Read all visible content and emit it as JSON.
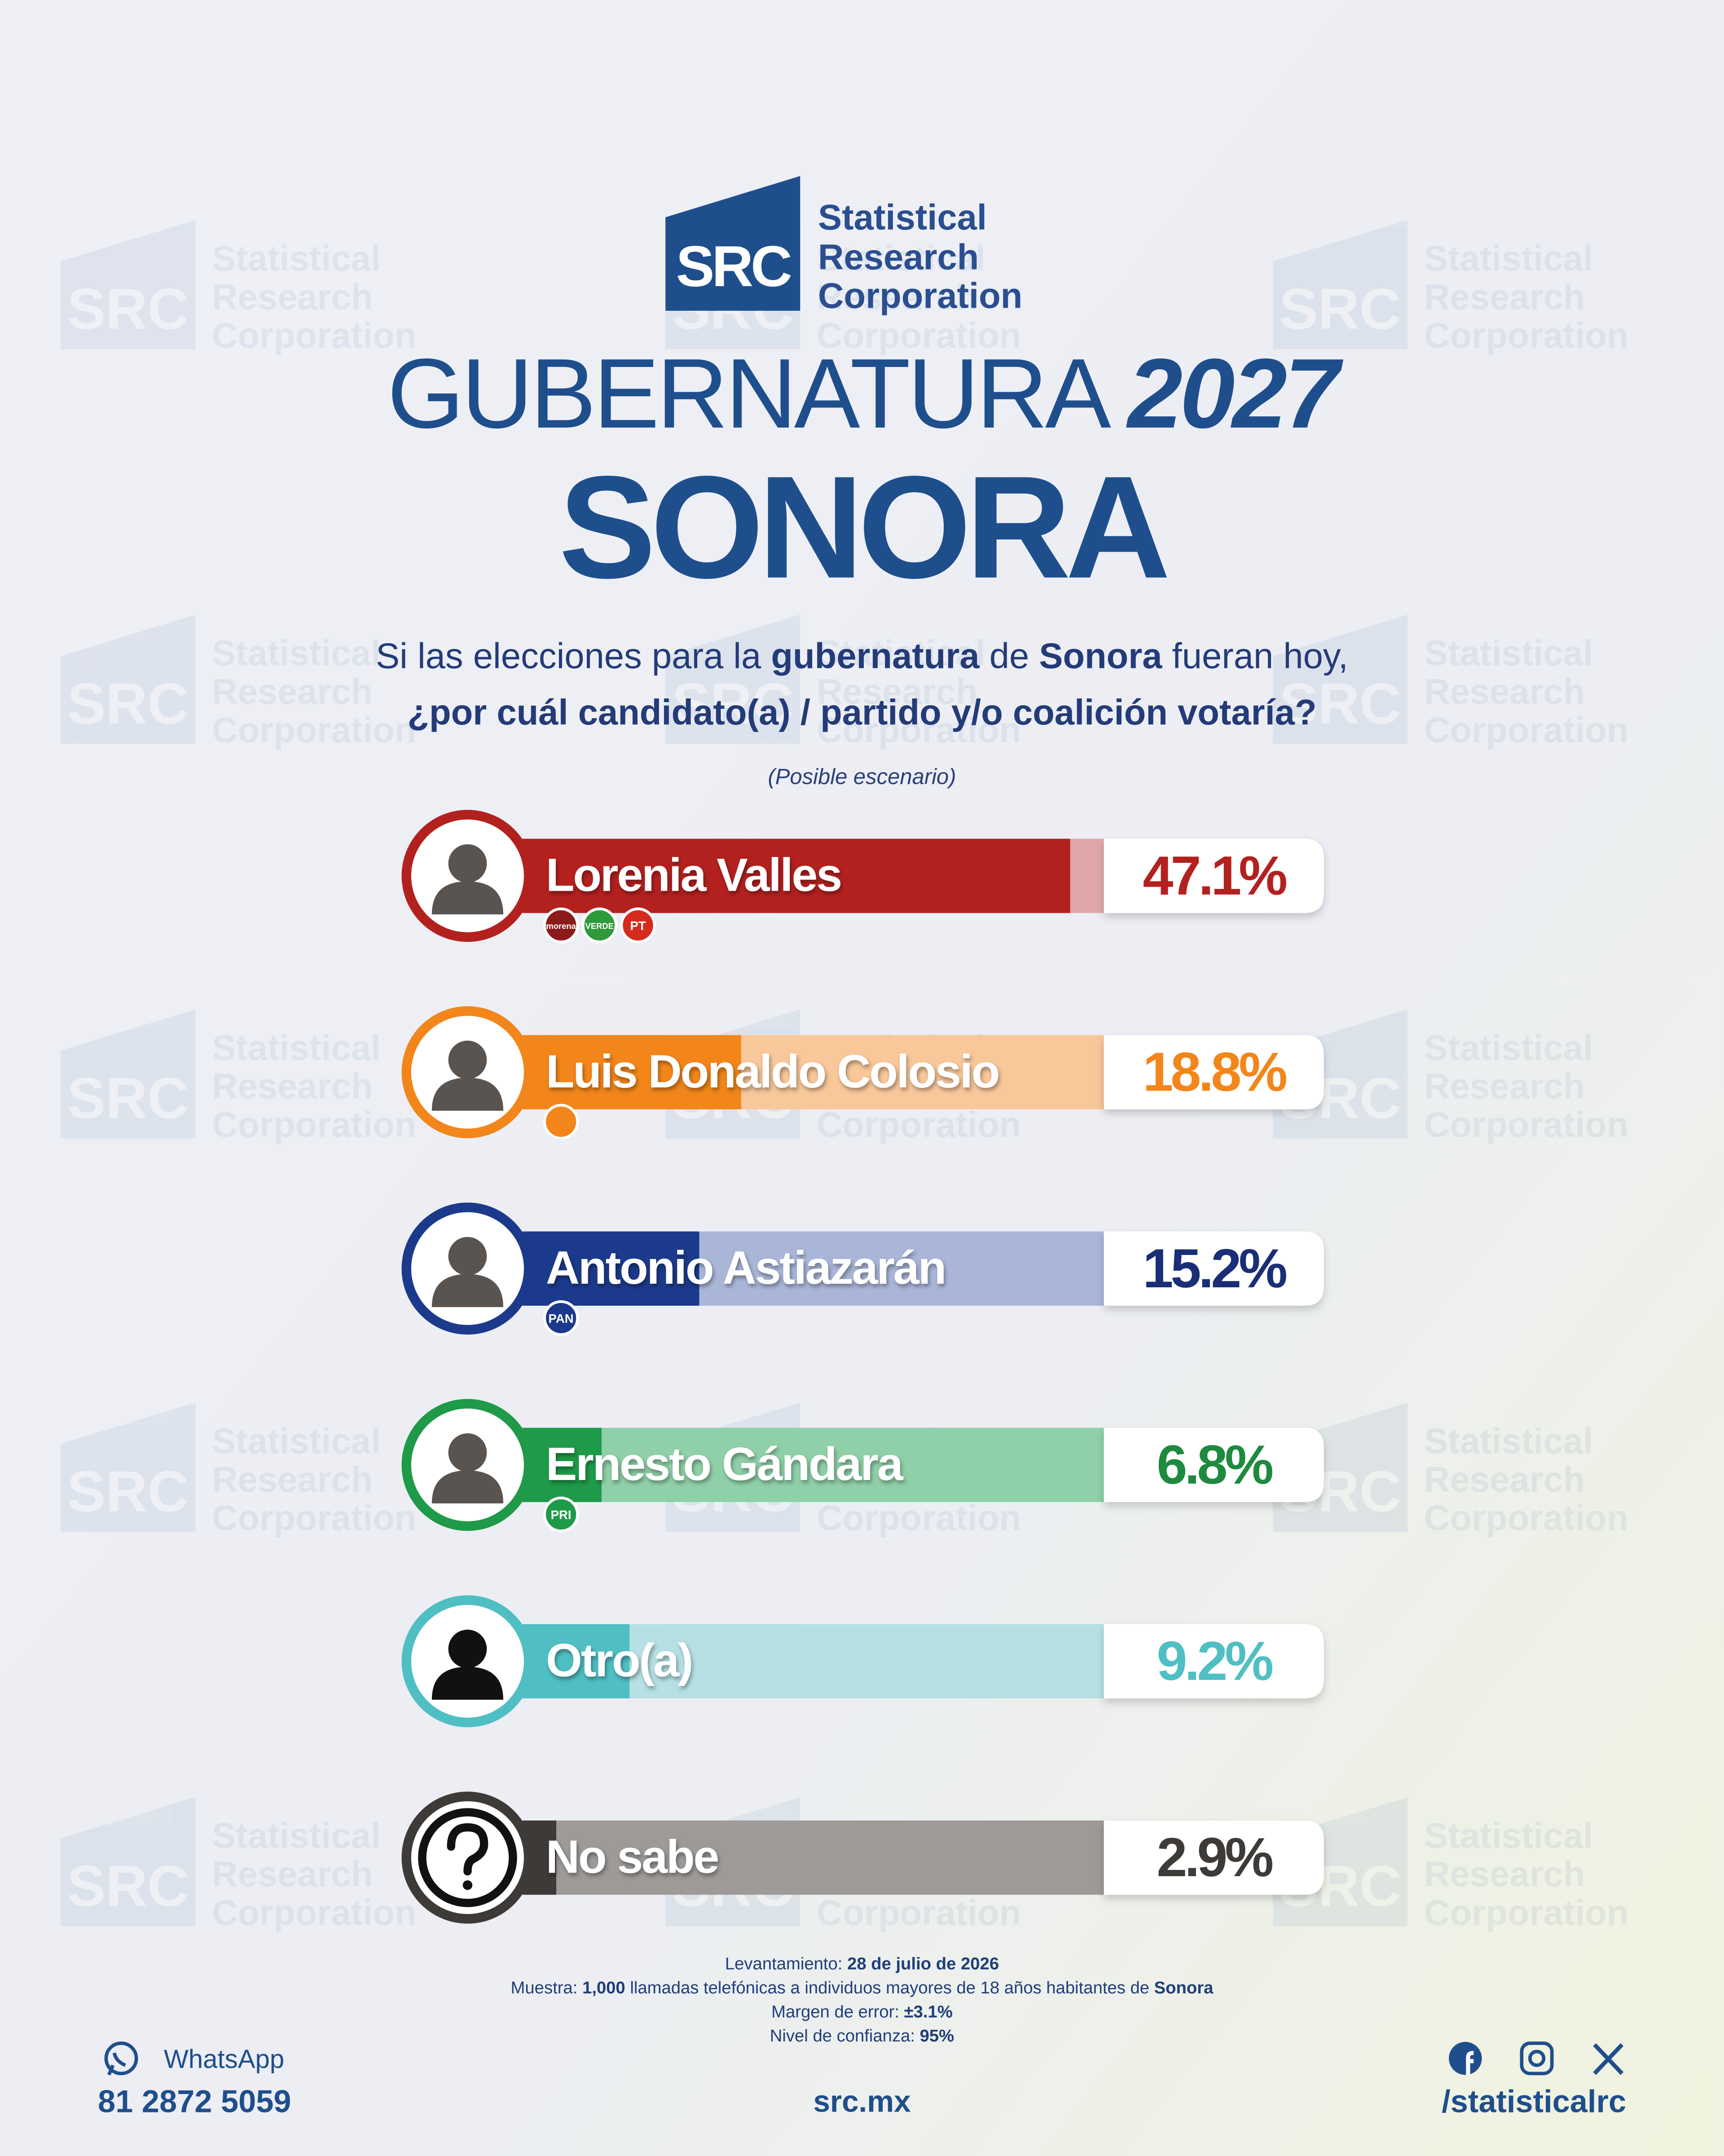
{
  "brand": {
    "initials": "SRC",
    "name": [
      "Statistical",
      "Research",
      "Corporation"
    ]
  },
  "chart_data": {
    "type": "bar",
    "orientation": "horizontal",
    "title": "GUBERNATURA",
    "title_year": "2027",
    "subtitle": "SONORA",
    "question": [
      [
        {
          "text": "Si las elecciones para la ",
          "bold": false
        },
        {
          "text": "gubernatura",
          "bold": true
        },
        {
          "text": " de ",
          "bold": false
        },
        {
          "text": "Sonora",
          "bold": true
        },
        {
          "text": " fueran hoy,",
          "bold": false
        }
      ],
      [
        {
          "text": "¿por cuál candidato(a) / partido y/o coalición votaría?",
          "bold": true
        }
      ]
    ],
    "note": "(Posible escenario)",
    "categories": [
      "Lorenia Valles",
      "Luis Donaldo Colosio",
      "Antonio Astiazarán",
      "Ernesto Gándara",
      "Otro(a)",
      "No sabe"
    ],
    "values": [
      47.1,
      18.8,
      15.2,
      6.8,
      9.2,
      2.9
    ],
    "value_labels": [
      "47.1%",
      "18.8%",
      "15.2%",
      "6.8%",
      "9.2%",
      "2.9%"
    ],
    "colors": [
      "#b3211f",
      "#f2861a",
      "#1c3a8c",
      "#1e9a48",
      "#4fbfc4",
      "#3d3a38"
    ],
    "track_colors": [
      "#dfa7a8",
      "#f8c79a",
      "#a9b6d8",
      "#8fd0a8",
      "#b6e0e4",
      "#9d9a98"
    ],
    "label_colors": [
      "#b3211f",
      "#f2861a",
      "#1a2e78",
      "#1e8a3e",
      "#4fbfc4",
      "#3d3a38"
    ],
    "parties": [
      [
        {
          "label": "morena",
          "color": "#8b1a1a"
        },
        {
          "label": "VERDE",
          "color": "#2e9a3c"
        },
        {
          "label": "PT",
          "color": "#d52b1e"
        }
      ],
      [
        {
          "color": "#f2861a"
        }
      ],
      [
        {
          "label": "PAN",
          "color": "#1c3a8c"
        }
      ],
      [
        {
          "label": "PRI",
          "color": "#1e9a48"
        }
      ],
      [],
      []
    ],
    "xlim": [
      0,
      50
    ]
  },
  "methodology": [
    [
      {
        "text": "Levantamiento: ",
        "bold": false
      },
      {
        "text": "28 de julio de 2026",
        "bold": true
      }
    ],
    [
      {
        "text": "Muestra: ",
        "bold": false
      },
      {
        "text": "1,000",
        "bold": true
      },
      {
        "text": " llamadas telefónicas a individuos mayores de 18 años habitantes de ",
        "bold": false
      },
      {
        "text": "Sonora",
        "bold": true
      }
    ],
    [
      {
        "text": "Margen de error: ",
        "bold": false
      },
      {
        "text": "±3.1%",
        "bold": true
      }
    ],
    [
      {
        "text": "Nivel de confianza: ",
        "bold": false
      },
      {
        "text": "95%",
        "bold": true
      }
    ]
  ],
  "footer": {
    "whatsapp_label": "WhatsApp",
    "phone": "81 2872 5059",
    "site": "src.mx",
    "social": "/statisticalrc"
  }
}
